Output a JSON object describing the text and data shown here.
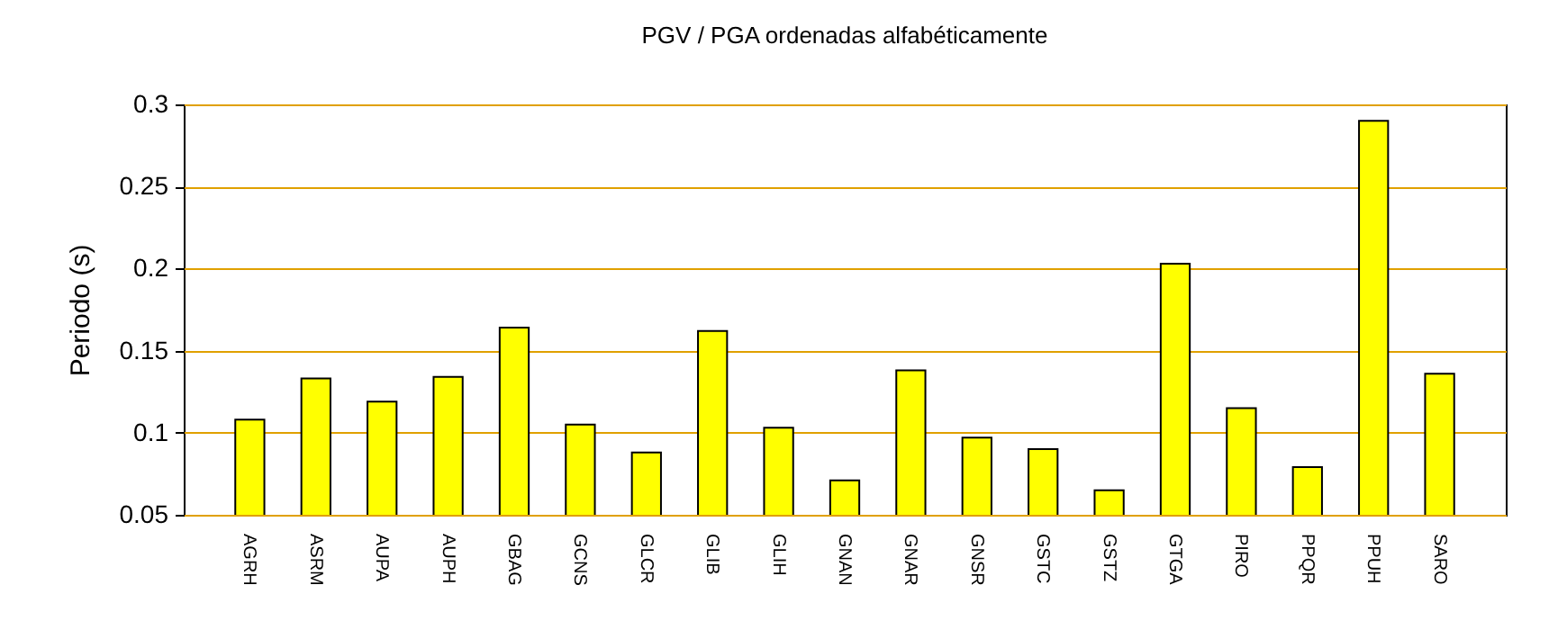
{
  "chart_data": {
    "type": "bar",
    "title": "PGV / PGA ordenadas alfabéticamente",
    "ylabel": "Periodo (s)",
    "categories": [
      "AGRH",
      "ASRM",
      "AUPA",
      "AUPH",
      "GBAG",
      "GCNS",
      "GLCR",
      "GLIB",
      "GLIH",
      "GNAN",
      "GNAR",
      "GNSR",
      "GSTC",
      "GSTZ",
      "GTGA",
      "PIRO",
      "PPQR",
      "PPUH",
      "SARO"
    ],
    "values": [
      0.108,
      0.133,
      0.119,
      0.134,
      0.164,
      0.105,
      0.088,
      0.162,
      0.103,
      0.071,
      0.138,
      0.097,
      0.09,
      0.065,
      0.203,
      0.115,
      0.079,
      0.29,
      0.136
    ],
    "color": "#ffff00",
    "ylim": [
      0.05,
      0.3
    ],
    "yticks": [
      0.05,
      0.1,
      0.15,
      0.2,
      0.25,
      0.3
    ],
    "grid": "y"
  }
}
